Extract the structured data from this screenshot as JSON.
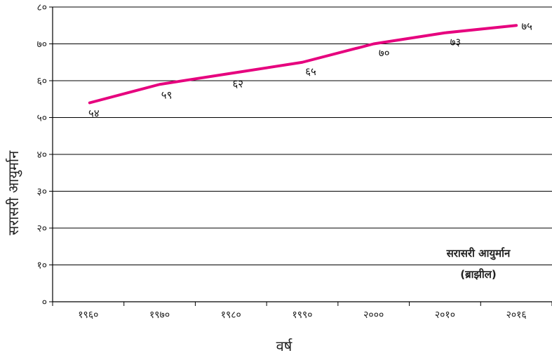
{
  "chart_data": {
    "type": "line",
    "title": "",
    "xlabel": "वर्ष",
    "ylabel": "सरासरी आयुर्मान",
    "x": [
      "१९६०",
      "१९७०",
      "१९८०",
      "१९९०",
      "२०००",
      "२०१०",
      "२०१६"
    ],
    "y_ticks": [
      "०",
      "१०",
      "२०",
      "३०",
      "४०",
      "५०",
      "६०",
      "७०",
      "८०"
    ],
    "ylim": [
      0,
      80
    ],
    "grid": true,
    "series": [
      {
        "name": "",
        "color": "#e6007e",
        "values": [
          54,
          59,
          62,
          65,
          70,
          73,
          75
        ],
        "labels": [
          "५४",
          "५९",
          "६२",
          "६५",
          "७०",
          "७३",
          "७५"
        ]
      }
    ],
    "legend": {
      "line1": "सरासरी आयुर्मान",
      "line2": "(ब्राझील)",
      "placement": "bottom-right"
    }
  }
}
